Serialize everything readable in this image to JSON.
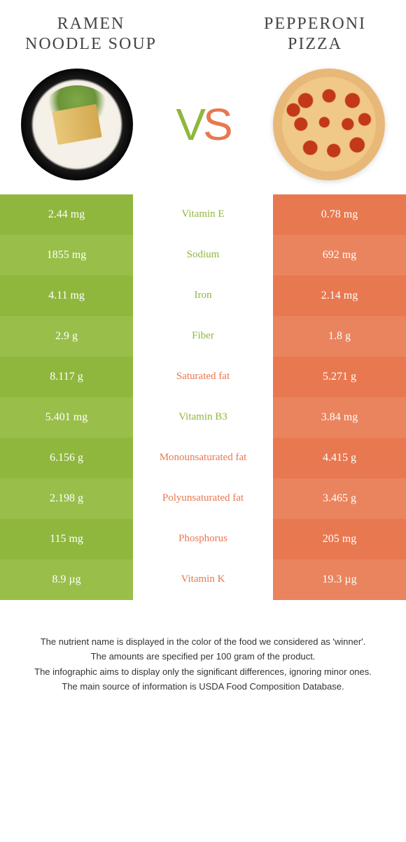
{
  "foods": {
    "left": {
      "title": "RAMEN NOODLE SOUP",
      "color": "#8fb73e",
      "alt_color": "#99bf4a"
    },
    "right": {
      "title": "PEPPERONI PIZZA",
      "color": "#e87850",
      "alt_color": "#ea845e"
    }
  },
  "vs_label": "VS",
  "rows": [
    {
      "label": "Vitamin E",
      "left": "2.44 mg",
      "right": "0.78 mg",
      "winner": "left"
    },
    {
      "label": "Sodium",
      "left": "1855 mg",
      "right": "692 mg",
      "winner": "left"
    },
    {
      "label": "Iron",
      "left": "4.11 mg",
      "right": "2.14 mg",
      "winner": "left"
    },
    {
      "label": "Fiber",
      "left": "2.9 g",
      "right": "1.8 g",
      "winner": "left"
    },
    {
      "label": "Saturated fat",
      "left": "8.117 g",
      "right": "5.271 g",
      "winner": "right"
    },
    {
      "label": "Vitamin B3",
      "left": "5.401 mg",
      "right": "3.84 mg",
      "winner": "left"
    },
    {
      "label": "Monounsaturated fat",
      "left": "6.156 g",
      "right": "4.415 g",
      "winner": "right"
    },
    {
      "label": "Polyunsaturated fat",
      "left": "2.198 g",
      "right": "3.465 g",
      "winner": "right"
    },
    {
      "label": "Phosphorus",
      "left": "115 mg",
      "right": "205 mg",
      "winner": "right"
    },
    {
      "label": "Vitamin K",
      "left": "8.9 µg",
      "right": "19.3 µg",
      "winner": "right"
    }
  ],
  "footer": [
    "The nutrient name is displayed in the color of the food we considered as 'winner'.",
    "The amounts are specified per 100 gram of the product.",
    "The infographic aims to display only the significant differences, ignoring minor ones.",
    "The main source of information is USDA Food Composition Database."
  ],
  "style": {
    "row_border": "#ffffff"
  }
}
